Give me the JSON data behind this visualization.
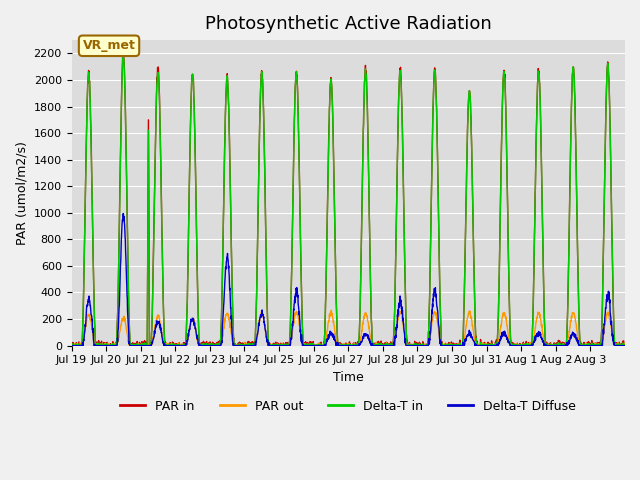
{
  "title": "Photosynthetic Active Radiation",
  "ylabel": "PAR (umol/m2/s)",
  "xlabel": "Time",
  "ylim": [
    0,
    2300
  ],
  "yticks": [
    0,
    200,
    400,
    600,
    800,
    1000,
    1200,
    1400,
    1600,
    1800,
    2000,
    2200
  ],
  "plot_bg_color": "#dcdcdc",
  "fig_bg_color": "#f0f0f0",
  "annotation_text": "VR_met",
  "annotation_bg": "#ffffcc",
  "annotation_border": "#996600",
  "legend_items": [
    {
      "label": "PAR in",
      "color": "#cc0000"
    },
    {
      "label": "PAR out",
      "color": "#ff9900"
    },
    {
      "label": "Delta-T in",
      "color": "#00cc00"
    },
    {
      "label": "Delta-T Diffuse",
      "color": "#0000cc"
    }
  ],
  "xtick_positions": [
    0,
    1,
    2,
    3,
    4,
    5,
    6,
    7,
    8,
    9,
    10,
    11,
    12,
    13,
    14,
    15
  ],
  "xtick_labels": [
    "Jul 19",
    "Jul 20",
    "Jul 21",
    "Jul 22",
    "Jul 23",
    "Jul 24",
    "Jul 25",
    "Jul 26",
    "Jul 27",
    "Jul 28",
    "Jul 29",
    "Jul 30",
    "Jul 31",
    "Aug 1",
    "Aug 2",
    "Aug 3"
  ],
  "n_days": 16,
  "day_peaks_PAR_in": [
    2050,
    2200,
    2100,
    2050,
    2020,
    2060,
    2060,
    2000,
    2080,
    2080,
    2080,
    1920,
    2080,
    2080,
    2100,
    2120
  ],
  "day_peaks_PAR_out": [
    230,
    210,
    220,
    200,
    240,
    245,
    250,
    245,
    240,
    250,
    250,
    250,
    245,
    245,
    245,
    245
  ],
  "day_peaks_delta_in": [
    2050,
    2180,
    2060,
    2050,
    2020,
    2060,
    2060,
    2000,
    2070,
    2070,
    2070,
    1920,
    2070,
    2070,
    2100,
    2120
  ],
  "day_peaks_delta_diffuse": [
    345,
    990,
    175,
    195,
    670,
    240,
    410,
    90,
    90,
    330,
    415,
    90,
    90,
    90,
    90,
    380
  ],
  "green_spike_day": 2,
  "green_spike_val": 1620,
  "title_fontsize": 13,
  "tick_fontsize": 8,
  "legend_fontsize": 9
}
